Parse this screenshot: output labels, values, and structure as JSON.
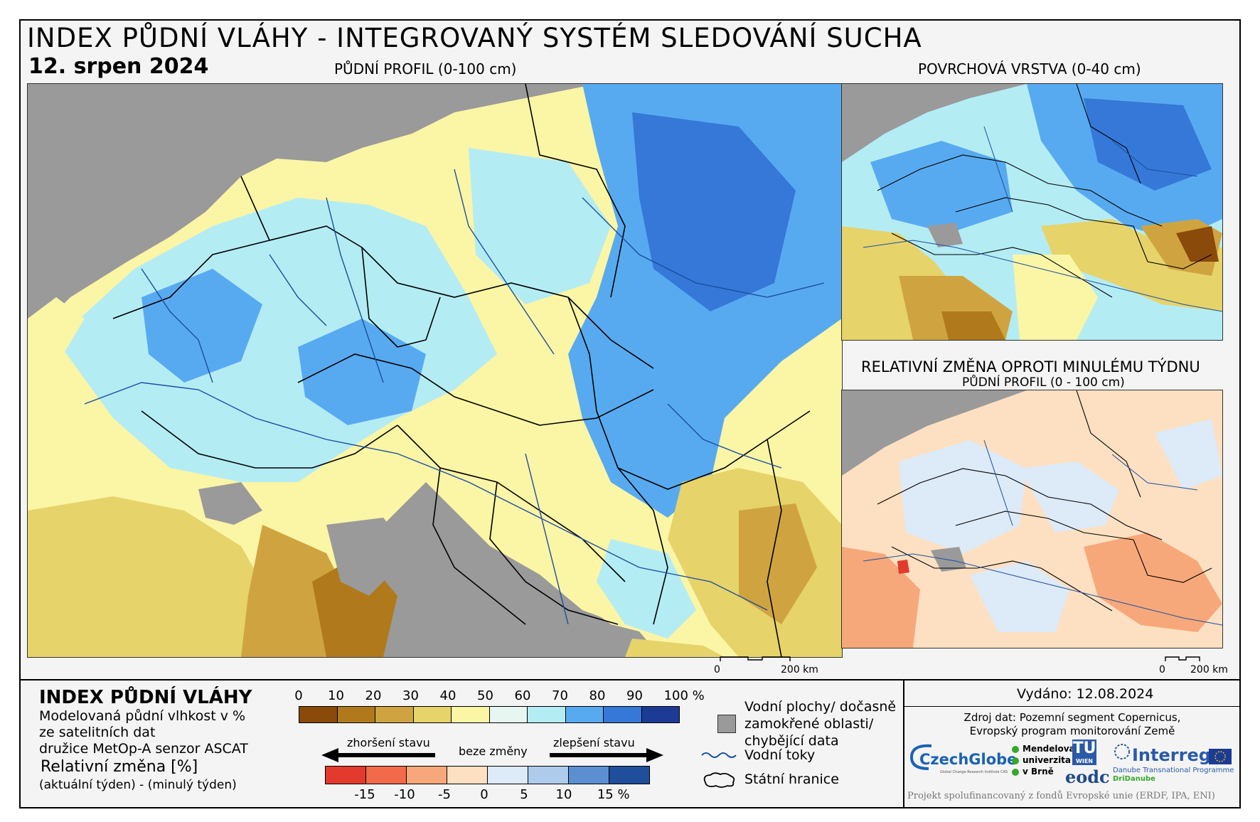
{
  "header": {
    "title": "INDEX PŮDNÍ VLÁHY - INTEGROVANÝ SYSTÉM SLEDOVÁNÍ SUCHA",
    "date": "12. srpen 2024"
  },
  "maps": {
    "main_title": "PŮDNÍ PROFIL (0-100 cm)",
    "surface_title": "POVRCHOVÁ VRSTVA (0-40 cm)",
    "change_title": "RELATIVNÍ ZMĚNA OPROTI MINULÉMU TÝDNU",
    "change_subtitle": "PŮDNÍ PROFIL (0 - 100 cm)",
    "main_scale": {
      "zero": "0",
      "end": "200 km"
    },
    "change_scale": {
      "zero": "0",
      "end": "200 km"
    }
  },
  "legend": {
    "title": "INDEX PŮDNÍ VLÁHY",
    "line1": "Modelovaná půdní vlhkost v %",
    "line2": "ze satelitních dat",
    "line3": "družice MetOp-A senzor ASCAT",
    "rel_title": "Relativní změna [%]",
    "rel_sub": "(aktuální týden) - (minulý týden)",
    "moisture_ticks": [
      "0",
      "10",
      "20",
      "30",
      "40",
      "50",
      "60",
      "70",
      "80",
      "90",
      "100 %"
    ],
    "moisture_colors": [
      "#8a4a0a",
      "#b07a1c",
      "#cfa440",
      "#e6d36a",
      "#fbf5a6",
      "#e6f6f0",
      "#b4ecf4",
      "#58aaf0",
      "#3578d8",
      "#1c3b94"
    ],
    "change_ticks": [
      "-15",
      "-10",
      "-5",
      "0",
      "5",
      "10",
      "15 %"
    ],
    "change_colors": [
      "#e33a2e",
      "#f26a4a",
      "#f7a87a",
      "#fde0c2",
      "#ddeaf7",
      "#aecbec",
      "#5b8fd2",
      "#1f4f9a"
    ],
    "worse": "zhoršení stavu",
    "nochange": "beze změny",
    "better": "zlepšení stavu"
  },
  "key": {
    "water_bodies_l1": "Vodní plochy/ dočasně",
    "water_bodies_l2": "zamokřené oblasti/",
    "water_bodies_l3": "chybějící data",
    "rivers": "Vodní toky",
    "borders": "Státní hranice",
    "colors": {
      "missing": "#9a9a9a",
      "river": "#1a4fa0"
    }
  },
  "footer": {
    "issued": "Vydáno: 12.08.2024",
    "source1": "Zdroj dat: Pozemní segment Copernicus,",
    "source2": "Evropský program monitorování Země",
    "logo_czechglobe": "CzechGlobe",
    "logo_czechglobe_sub": "Global Change Research Institute CAS",
    "logo_mendel_1": "Mendelova",
    "logo_mendel_2": "univerzita",
    "logo_mendel_3": "v Brně",
    "logo_tu": "TU",
    "logo_tu_sub": "WIEN",
    "logo_eodc": "eodc",
    "logo_interreg": "Interreg",
    "logo_interreg_sub1": "Danube Transnational Programme",
    "logo_interreg_sub2": "DriDanube",
    "project": "Projekt spolufinancovaný z fondů Evropské unie (ERDF, IPA, ENI)"
  }
}
